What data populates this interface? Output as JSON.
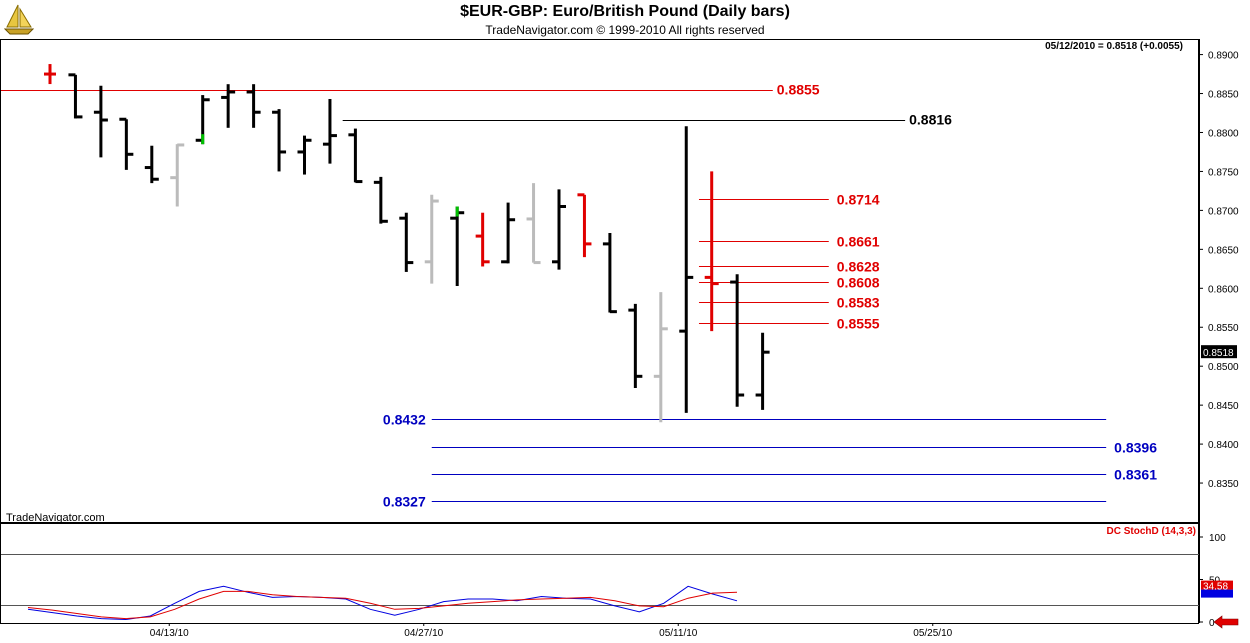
{
  "header": {
    "title": "$EUR-GBP:  Euro/British Pound  (Daily bars)",
    "subtitle": "TradeNavigator.com © 1999-2010 All rights reserved",
    "logo_icon": "sailboat-logo-icon"
  },
  "chart_data": [
    {
      "type": "ohlc",
      "quote_readout": "05/12/2010 = 0.8518 (+0.0055)",
      "watermark": "TradeNavigator.com",
      "price_axis": {
        "ylim": [
          0.83,
          0.892
        ],
        "ticks": [
          "0.8900",
          "0.8850",
          "0.8800",
          "0.8750",
          "0.8700",
          "0.8650",
          "0.8600",
          "0.8550",
          "0.8500",
          "0.8450",
          "0.8400",
          "0.8350"
        ],
        "last_price_label": "0.8518"
      },
      "x_axis": {
        "labels": [
          "04/13/10",
          "04/27/10",
          "05/11/10",
          "05/25/10"
        ],
        "label_bar_index": [
          5,
          15,
          25,
          35
        ]
      },
      "bars": [
        {
          "i": 0,
          "o": 0.8872,
          "h": 0.888,
          "l": 0.8865,
          "c": 0.8875,
          "color": "#e00000",
          "kind": "cross"
        },
        {
          "i": 1,
          "o": 0.8874,
          "h": 0.8874,
          "l": 0.8818,
          "c": 0.882,
          "color": "#000000"
        },
        {
          "i": 2,
          "o": 0.8826,
          "h": 0.886,
          "l": 0.8768,
          "c": 0.8816,
          "color": "#000000"
        },
        {
          "i": 3,
          "o": 0.8817,
          "h": 0.8817,
          "l": 0.8752,
          "c": 0.8772,
          "color": "#000000"
        },
        {
          "i": 4,
          "o": 0.8755,
          "h": 0.8783,
          "l": 0.8735,
          "c": 0.874,
          "color": "#000000"
        },
        {
          "i": 5,
          "o": 0.8742,
          "h": 0.8785,
          "l": 0.8705,
          "c": 0.8784,
          "color": "#bbbbbb"
        },
        {
          "i": 6,
          "o": 0.879,
          "h": 0.8848,
          "l": 0.8785,
          "c": 0.8842,
          "color": "#000000",
          "low_color": "#00c000"
        },
        {
          "i": 7,
          "o": 0.8845,
          "h": 0.8862,
          "l": 0.8806,
          "c": 0.8852,
          "color": "#000000"
        },
        {
          "i": 8,
          "o": 0.8852,
          "h": 0.8862,
          "l": 0.8806,
          "c": 0.8826,
          "color": "#000000"
        },
        {
          "i": 9,
          "o": 0.8826,
          "h": 0.883,
          "l": 0.875,
          "c": 0.8775,
          "color": "#000000"
        },
        {
          "i": 10,
          "o": 0.8775,
          "h": 0.8796,
          "l": 0.8746,
          "c": 0.879,
          "color": "#000000"
        },
        {
          "i": 11,
          "o": 0.8785,
          "h": 0.8843,
          "l": 0.876,
          "c": 0.8796,
          "color": "#000000"
        },
        {
          "i": 12,
          "o": 0.8797,
          "h": 0.8805,
          "l": 0.8736,
          "c": 0.8737,
          "color": "#000000"
        },
        {
          "i": 13,
          "o": 0.8736,
          "h": 0.8743,
          "l": 0.8683,
          "c": 0.8686,
          "color": "#000000"
        },
        {
          "i": 14,
          "o": 0.869,
          "h": 0.8697,
          "l": 0.8621,
          "c": 0.8633,
          "color": "#000000"
        },
        {
          "i": 15,
          "o": 0.8634,
          "h": 0.872,
          "l": 0.8606,
          "c": 0.8712,
          "color": "#bbbbbb"
        },
        {
          "i": 16,
          "o": 0.869,
          "h": 0.8705,
          "l": 0.8603,
          "c": 0.8697,
          "color": "#000000",
          "high_color": "#00c000"
        },
        {
          "i": 17,
          "o": 0.8667,
          "h": 0.8697,
          "l": 0.8628,
          "c": 0.8634,
          "color": "#e00000"
        },
        {
          "i": 18,
          "o": 0.8634,
          "h": 0.871,
          "l": 0.8632,
          "c": 0.8688,
          "color": "#000000"
        },
        {
          "i": 19,
          "o": 0.8689,
          "h": 0.8735,
          "l": 0.8633,
          "c": 0.8633,
          "color": "#bbbbbb"
        },
        {
          "i": 20,
          "o": 0.8634,
          "h": 0.8727,
          "l": 0.8624,
          "c": 0.8705,
          "color": "#000000"
        },
        {
          "i": 21,
          "o": 0.872,
          "h": 0.872,
          "l": 0.864,
          "c": 0.8657,
          "color": "#e00000"
        },
        {
          "i": 22,
          "o": 0.8657,
          "h": 0.8671,
          "l": 0.8569,
          "c": 0.857,
          "color": "#000000"
        },
        {
          "i": 23,
          "o": 0.8572,
          "h": 0.858,
          "l": 0.8472,
          "c": 0.8487,
          "color": "#000000"
        },
        {
          "i": 24,
          "o": 0.8487,
          "h": 0.8595,
          "l": 0.8428,
          "c": 0.8548,
          "color": "#bbbbbb"
        },
        {
          "i": 25,
          "o": 0.8545,
          "h": 0.8808,
          "l": 0.844,
          "c": 0.8614,
          "color": "#000000"
        },
        {
          "i": 26,
          "o": 0.8614,
          "h": 0.875,
          "l": 0.8545,
          "c": 0.8606,
          "color": "#e00000"
        },
        {
          "i": 27,
          "o": 0.8608,
          "h": 0.8618,
          "l": 0.8448,
          "c": 0.8463,
          "color": "#000000"
        },
        {
          "i": 28,
          "o": 0.8463,
          "h": 0.8543,
          "l": 0.8444,
          "c": 0.8518,
          "color": "#000000"
        }
      ],
      "levels": [
        {
          "value": 0.8855,
          "label": "0.8855",
          "color": "#e00000",
          "x0": 0,
          "x1": 28.4,
          "label_at": "right-upper"
        },
        {
          "value": 0.8816,
          "label": "0.8816",
          "color": "#000000",
          "x0": 11.5,
          "x1": 33.6,
          "label_at": "right-upper"
        },
        {
          "value": 0.8714,
          "label": "0.8714",
          "color": "#e00000",
          "x0": 25.5,
          "x1": 30.6,
          "label_at": "right"
        },
        {
          "value": 0.8661,
          "label": "0.8661",
          "color": "#e00000",
          "x0": 25.5,
          "x1": 30.6,
          "label_at": "right"
        },
        {
          "value": 0.8628,
          "label": "0.8628",
          "color": "#e00000",
          "x0": 25.5,
          "x1": 30.6,
          "label_at": "right"
        },
        {
          "value": 0.8608,
          "label": "0.8608",
          "color": "#e00000",
          "x0": 25.5,
          "x1": 30.6,
          "label_at": "right"
        },
        {
          "value": 0.8583,
          "label": "0.8583",
          "color": "#e00000",
          "x0": 25.5,
          "x1": 30.6,
          "label_at": "right"
        },
        {
          "value": 0.8555,
          "label": "0.8555",
          "color": "#e00000",
          "x0": 25.5,
          "x1": 30.6,
          "label_at": "right"
        },
        {
          "value": 0.8432,
          "label": "0.8432",
          "color": "#0000c0",
          "x0": 15.0,
          "x1": 41.5,
          "label_at": "left"
        },
        {
          "value": 0.8396,
          "label": "0.8396",
          "color": "#0000c0",
          "x0": 15.0,
          "x1": 41.5,
          "label_at": "right"
        },
        {
          "value": 0.8361,
          "label": "0.8361",
          "color": "#0000c0",
          "x0": 15.0,
          "x1": 41.5,
          "label_at": "right"
        },
        {
          "value": 0.8327,
          "label": "0.8327",
          "color": "#0000c0",
          "x0": 15.0,
          "x1": 41.5,
          "label_at": "left"
        }
      ]
    },
    {
      "type": "line",
      "indicator_label": "DC  StochD (14,3,3)",
      "y_axis": {
        "ylim": [
          0,
          100
        ],
        "ticks": [
          "100",
          "50",
          "0"
        ],
        "reference_lines": [
          80,
          20
        ]
      },
      "last_value_label": "34.58",
      "series": [
        {
          "color": "#0000e0",
          "values": [
            15,
            11,
            7,
            4,
            3,
            7,
            22,
            36,
            42,
            35,
            29,
            30,
            29,
            27,
            15,
            8,
            15,
            24,
            27,
            27,
            25,
            30,
            28,
            27,
            19,
            12,
            22,
            42,
            33,
            25
          ]
        },
        {
          "color": "#e00000",
          "values": [
            17,
            14,
            10,
            6,
            4,
            6,
            15,
            27,
            36,
            36,
            32,
            30,
            29,
            28,
            22,
            15,
            16,
            19,
            22,
            24,
            26,
            27,
            28,
            29,
            25,
            19,
            18,
            28,
            34,
            35
          ]
        }
      ]
    }
  ]
}
